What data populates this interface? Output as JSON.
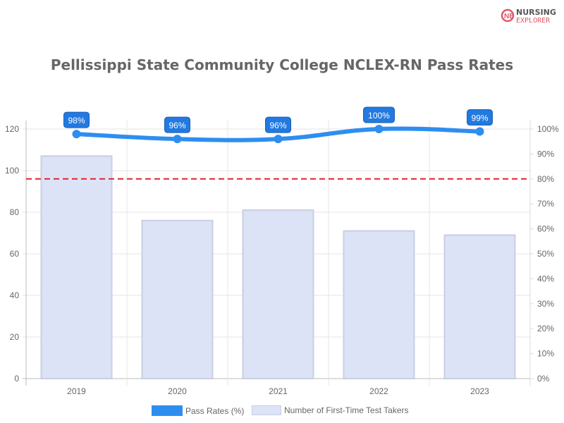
{
  "title": "Pellissippi State Community College NCLEX-RN Pass Rates",
  "logo": {
    "line1": "NURSING",
    "line2": "EXPLORER"
  },
  "chart_data": {
    "type": "bar+line",
    "title": "Pellissippi State Community College NCLEX-RN Pass Rates",
    "categories": [
      "2019",
      "2020",
      "2021",
      "2022",
      "2023"
    ],
    "series": [
      {
        "name": "Pass Rates (%)",
        "type": "line",
        "axis": "right",
        "values": [
          98,
          96,
          96,
          100,
          99
        ],
        "labels": [
          "98%",
          "96%",
          "96%",
          "100%",
          "99%"
        ],
        "color": "#2e8ef0"
      },
      {
        "name": "Number of First-Time Test Takers",
        "type": "bar",
        "axis": "left",
        "values": [
          107,
          76,
          81,
          71,
          69
        ],
        "color": "#dde3f6",
        "border": "#c8cfe3"
      }
    ],
    "reference_line": {
      "value": 80,
      "axis": "right",
      "style": "dashed",
      "color": "#e8202a"
    },
    "left_axis": {
      "ylim": [
        0,
        120
      ],
      "ticks": [
        "0",
        "20",
        "40",
        "60",
        "80",
        "100",
        "120"
      ]
    },
    "right_axis": {
      "ylim": [
        0,
        100
      ],
      "ticks": [
        "0%",
        "10%",
        "20%",
        "30%",
        "40%",
        "50%",
        "60%",
        "70%",
        "80%",
        "90%",
        "100%"
      ]
    },
    "grid": true,
    "legend_position": "bottom"
  }
}
